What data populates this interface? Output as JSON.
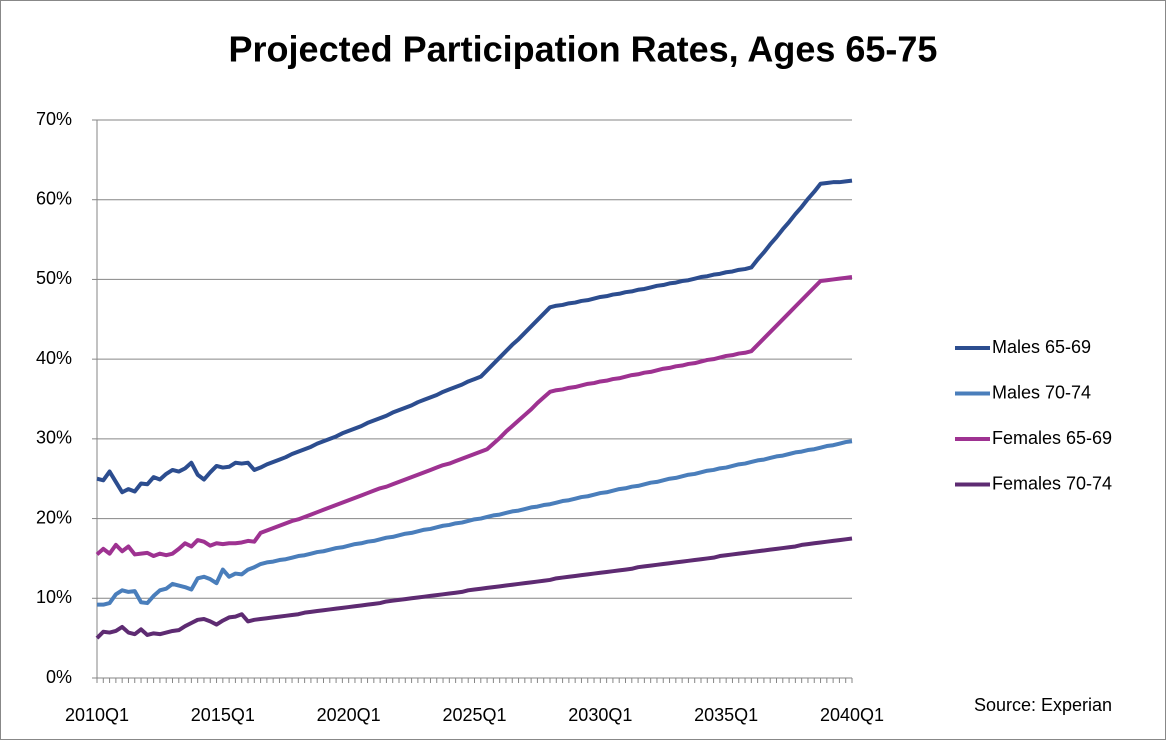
{
  "chart_data": {
    "type": "line",
    "title": "Projected Participation Rates, Ages 65-75",
    "source": "Source: Experian",
    "categories": [
      "2010Q1",
      null,
      null,
      null,
      null,
      null,
      null,
      null,
      null,
      null,
      null,
      null,
      null,
      null,
      null,
      null,
      null,
      null,
      null,
      null,
      "2015Q1",
      null,
      null,
      null,
      null,
      null,
      null,
      null,
      null,
      null,
      null,
      null,
      null,
      null,
      null,
      null,
      null,
      null,
      null,
      null,
      "2020Q1",
      null,
      null,
      null,
      null,
      null,
      null,
      null,
      null,
      null,
      null,
      null,
      null,
      null,
      null,
      null,
      null,
      null,
      null,
      null,
      "2025Q1",
      null,
      null,
      null,
      null,
      null,
      null,
      null,
      null,
      null,
      null,
      null,
      null,
      null,
      null,
      null,
      null,
      null,
      null,
      null,
      "2030Q1",
      null,
      null,
      null,
      null,
      null,
      null,
      null,
      null,
      null,
      null,
      null,
      null,
      null,
      null,
      null,
      null,
      null,
      null,
      null,
      "2035Q1",
      null,
      null,
      null,
      null,
      null,
      null,
      null,
      null,
      null,
      null,
      null,
      null,
      null,
      null,
      null,
      null,
      null,
      null,
      null,
      "2040Q1"
    ],
    "series": [
      {
        "name": "Males 65-69",
        "color": "#2c4d8f",
        "values": [
          25.0,
          24.8,
          25.9,
          24.6,
          23.3,
          23.7,
          23.4,
          24.4,
          24.3,
          25.2,
          24.9,
          25.6,
          26.1,
          25.9,
          26.3,
          27.0,
          25.5,
          24.9,
          25.8,
          26.6,
          26.4,
          26.5,
          27.0,
          26.9,
          27.0,
          26.1,
          26.4,
          26.8,
          27.1,
          27.4,
          27.7,
          28.1,
          28.4,
          28.7,
          29.0,
          29.4,
          29.7,
          30.0,
          30.3,
          30.7,
          31.0,
          31.3,
          31.6,
          32.0,
          32.3,
          32.6,
          32.9,
          33.3,
          33.6,
          33.9,
          34.2,
          34.6,
          34.9,
          35.2,
          35.5,
          35.9,
          36.2,
          36.5,
          36.8,
          37.2,
          37.5,
          37.8,
          38.6,
          39.4,
          40.2,
          41.0,
          41.8,
          42.5,
          43.3,
          44.1,
          44.9,
          45.7,
          46.5,
          46.7,
          46.8,
          47.0,
          47.1,
          47.3,
          47.4,
          47.6,
          47.8,
          47.9,
          48.1,
          48.2,
          48.4,
          48.5,
          48.7,
          48.8,
          49.0,
          49.2,
          49.3,
          49.5,
          49.6,
          49.8,
          49.9,
          50.1,
          50.3,
          50.4,
          50.6,
          50.7,
          50.9,
          51.0,
          51.2,
          51.3,
          51.5,
          52.5,
          53.4,
          54.4,
          55.3,
          56.3,
          57.2,
          58.2,
          59.1,
          60.1,
          61.0,
          62.0,
          62.1,
          62.2,
          62.2,
          62.3,
          62.4
        ]
      },
      {
        "name": "Males 70-74",
        "color": "#4a7ebb",
        "values": [
          9.2,
          9.2,
          9.4,
          10.5,
          11.0,
          10.8,
          10.9,
          9.5,
          9.4,
          10.3,
          11.0,
          11.2,
          11.8,
          11.6,
          11.4,
          11.1,
          12.5,
          12.7,
          12.4,
          11.9,
          13.6,
          12.7,
          13.1,
          13.0,
          13.6,
          13.9,
          14.3,
          14.5,
          14.6,
          14.8,
          14.9,
          15.1,
          15.3,
          15.4,
          15.6,
          15.8,
          15.9,
          16.1,
          16.3,
          16.4,
          16.6,
          16.8,
          16.9,
          17.1,
          17.2,
          17.4,
          17.6,
          17.7,
          17.9,
          18.1,
          18.2,
          18.4,
          18.6,
          18.7,
          18.9,
          19.1,
          19.2,
          19.4,
          19.5,
          19.7,
          19.9,
          20.0,
          20.2,
          20.4,
          20.5,
          20.7,
          20.9,
          21.0,
          21.2,
          21.4,
          21.5,
          21.7,
          21.8,
          22.0,
          22.2,
          22.3,
          22.5,
          22.7,
          22.8,
          23.0,
          23.2,
          23.3,
          23.5,
          23.7,
          23.8,
          24.0,
          24.1,
          24.3,
          24.5,
          24.6,
          24.8,
          25.0,
          25.1,
          25.3,
          25.5,
          25.6,
          25.8,
          26.0,
          26.1,
          26.3,
          26.4,
          26.6,
          26.8,
          26.9,
          27.1,
          27.3,
          27.4,
          27.6,
          27.8,
          27.9,
          28.1,
          28.3,
          28.4,
          28.6,
          28.7,
          28.9,
          29.1,
          29.2,
          29.4,
          29.6,
          29.7
        ]
      },
      {
        "name": "Females 65-69",
        "color": "#9e3291",
        "values": [
          15.5,
          16.2,
          15.6,
          16.7,
          15.9,
          16.5,
          15.5,
          15.6,
          15.7,
          15.3,
          15.6,
          15.4,
          15.6,
          16.2,
          16.9,
          16.5,
          17.3,
          17.1,
          16.6,
          16.9,
          16.8,
          16.9,
          16.9,
          17.0,
          17.2,
          17.1,
          18.2,
          18.5,
          18.8,
          19.1,
          19.4,
          19.7,
          19.9,
          20.2,
          20.5,
          20.8,
          21.1,
          21.4,
          21.7,
          22.0,
          22.3,
          22.6,
          22.9,
          23.2,
          23.5,
          23.8,
          24.0,
          24.3,
          24.6,
          24.9,
          25.2,
          25.5,
          25.8,
          26.1,
          26.4,
          26.7,
          26.9,
          27.2,
          27.5,
          27.8,
          28.1,
          28.4,
          28.7,
          29.4,
          30.1,
          30.9,
          31.6,
          32.3,
          33.0,
          33.7,
          34.5,
          35.2,
          35.9,
          36.1,
          36.2,
          36.4,
          36.5,
          36.7,
          36.9,
          37.0,
          37.2,
          37.3,
          37.5,
          37.6,
          37.8,
          38.0,
          38.1,
          38.3,
          38.4,
          38.6,
          38.8,
          38.9,
          39.1,
          39.2,
          39.4,
          39.5,
          39.7,
          39.9,
          40.0,
          40.2,
          40.4,
          40.5,
          40.7,
          40.8,
          41.0,
          41.8,
          42.6,
          43.4,
          44.2,
          45.0,
          45.8,
          46.6,
          47.4,
          48.2,
          49.0,
          49.8,
          49.9,
          50.0,
          50.1,
          50.2,
          50.3
        ]
      },
      {
        "name": "Females 70-74",
        "color": "#5e2b72",
        "values": [
          5.0,
          5.8,
          5.7,
          5.9,
          6.4,
          5.7,
          5.5,
          6.1,
          5.4,
          5.6,
          5.5,
          5.7,
          5.9,
          6.0,
          6.5,
          6.9,
          7.3,
          7.4,
          7.1,
          6.7,
          7.2,
          7.6,
          7.7,
          8.0,
          7.1,
          7.3,
          7.4,
          7.5,
          7.6,
          7.7,
          7.8,
          7.9,
          8.0,
          8.2,
          8.3,
          8.4,
          8.5,
          8.6,
          8.7,
          8.8,
          8.9,
          9.0,
          9.1,
          9.2,
          9.3,
          9.4,
          9.6,
          9.7,
          9.8,
          9.9,
          10.0,
          10.1,
          10.2,
          10.3,
          10.4,
          10.5,
          10.6,
          10.7,
          10.8,
          11.0,
          11.1,
          11.2,
          11.3,
          11.4,
          11.5,
          11.6,
          11.7,
          11.8,
          11.9,
          12.0,
          12.1,
          12.2,
          12.3,
          12.5,
          12.6,
          12.7,
          12.8,
          12.9,
          13.0,
          13.1,
          13.2,
          13.3,
          13.4,
          13.5,
          13.6,
          13.7,
          13.9,
          14.0,
          14.1,
          14.2,
          14.3,
          14.4,
          14.5,
          14.6,
          14.7,
          14.8,
          14.9,
          15.0,
          15.1,
          15.3,
          15.4,
          15.5,
          15.6,
          15.7,
          15.8,
          15.9,
          16.0,
          16.1,
          16.2,
          16.3,
          16.4,
          16.5,
          16.7,
          16.8,
          16.9,
          17.0,
          17.1,
          17.2,
          17.3,
          17.4,
          17.5
        ]
      }
    ],
    "ylim": [
      0,
      70
    ],
    "yticks": [
      {
        "value": 0,
        "label": "0%"
      },
      {
        "value": 10,
        "label": "10%"
      },
      {
        "value": 20,
        "label": "20%"
      },
      {
        "value": 30,
        "label": "30%"
      },
      {
        "value": 40,
        "label": "40%"
      },
      {
        "value": 50,
        "label": "50%"
      },
      {
        "value": 60,
        "label": "60%"
      },
      {
        "value": 70,
        "label": "70%"
      }
    ],
    "grid": true,
    "legend": "right"
  }
}
